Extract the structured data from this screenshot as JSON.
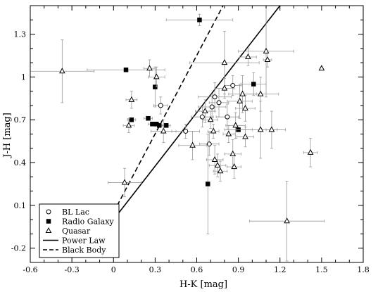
{
  "chart_data": {
    "type": "scatter",
    "xlabel": "H-K [mag]",
    "ylabel": "J-H [mag]",
    "xlim": [
      -0.6,
      1.8
    ],
    "ylim": [
      -0.3,
      1.5
    ],
    "x_ticks": [
      "-0.6",
      "-0.3",
      "0",
      "0.3",
      "0.6",
      "0.9",
      "1.2",
      "1.5",
      "1.8"
    ],
    "y_ticks": [
      "-0.2",
      "0.1",
      "0.4",
      "0.7",
      "1",
      "1.3"
    ],
    "grid": false,
    "legend_position": "bottom-left",
    "series": [
      {
        "name": "BL Lac",
        "marker": "open-circle",
        "points": [
          {
            "x": 0.34,
            "y": 0.8,
            "xerr": 0.05,
            "yerr": 0.06
          },
          {
            "x": 0.52,
            "y": 0.62,
            "xerr": 0.1,
            "yerr": 0.05
          },
          {
            "x": 0.64,
            "y": 0.72,
            "xerr": 0.08,
            "yerr": 0.07
          },
          {
            "x": 0.69,
            "y": 0.53,
            "xerr": 0.07,
            "yerr": 0.08
          },
          {
            "x": 0.71,
            "y": 0.79,
            "xerr": 0.1,
            "yerr": 0.09
          },
          {
            "x": 0.73,
            "y": 0.86,
            "xerr": 0.12,
            "yerr": 0.1
          },
          {
            "x": 0.76,
            "y": 0.82,
            "xerr": 0.07,
            "yerr": 0.1
          },
          {
            "x": 0.82,
            "y": 0.72,
            "xerr": 0.08,
            "yerr": 0.09
          },
          {
            "x": 0.86,
            "y": 0.94,
            "xerr": 0.06,
            "yerr": 0.07
          }
        ]
      },
      {
        "name": "Radio Galaxy",
        "marker": "filled-square",
        "points": [
          {
            "x": 0.09,
            "y": 1.05,
            "xerr": 0.28,
            "yerr": 0.0
          },
          {
            "x": 0.13,
            "y": 0.7,
            "xerr": 0.03,
            "yerr": 0.0
          },
          {
            "x": 0.25,
            "y": 0.71,
            "xerr": 0.03,
            "yerr": 0.0
          },
          {
            "x": 0.28,
            "y": 0.67,
            "xerr": 0.03,
            "yerr": 0.0
          },
          {
            "x": 0.3,
            "y": 0.93,
            "xerr": 0.0,
            "yerr": 0.14
          },
          {
            "x": 0.31,
            "y": 0.67,
            "xerr": 0.03,
            "yerr": 0.0
          },
          {
            "x": 0.33,
            "y": 0.66,
            "xerr": 0.03,
            "yerr": 0.0
          },
          {
            "x": 0.38,
            "y": 0.66,
            "xerr": 0.03,
            "yerr": 0.0
          },
          {
            "x": 0.62,
            "y": 1.4,
            "xerr": 0.24,
            "yerr": 0.04
          },
          {
            "x": 0.68,
            "y": 0.25,
            "xerr": 0.0,
            "yerr": 0.35
          },
          {
            "x": 0.9,
            "y": 0.63,
            "xerr": 0.1,
            "yerr": 0.0
          },
          {
            "x": 1.01,
            "y": 0.95,
            "xerr": 0.09,
            "yerr": 0.08
          }
        ]
      },
      {
        "name": "Quasar",
        "marker": "open-triangle",
        "points": [
          {
            "x": -0.37,
            "y": 1.04,
            "xerr": 0.23,
            "yerr": 0.22
          },
          {
            "x": 0.08,
            "y": 0.26,
            "xerr": 0.12,
            "yerr": 0.1
          },
          {
            "x": 0.11,
            "y": 0.66,
            "xerr": 0.04,
            "yerr": 0.05
          },
          {
            "x": 0.13,
            "y": 0.84,
            "xerr": 0.04,
            "yerr": 0.06
          },
          {
            "x": 0.26,
            "y": 1.06,
            "xerr": 0.04,
            "yerr": 0.06
          },
          {
            "x": 0.31,
            "y": 1.0,
            "xerr": 0.06,
            "yerr": 0.07
          },
          {
            "x": 0.36,
            "y": 0.62,
            "xerr": 0.09,
            "yerr": 0.08
          },
          {
            "x": 0.57,
            "y": 0.52,
            "xerr": 0.1,
            "yerr": 0.1
          },
          {
            "x": 0.66,
            "y": 0.76,
            "xerr": 0.07,
            "yerr": 0.08
          },
          {
            "x": 0.7,
            "y": 0.7,
            "xerr": 0.05,
            "yerr": 0.06
          },
          {
            "x": 0.72,
            "y": 0.62,
            "xerr": 0.04,
            "yerr": 0.05
          },
          {
            "x": 0.73,
            "y": 0.42,
            "xerr": 0.06,
            "yerr": 0.1
          },
          {
            "x": 0.75,
            "y": 0.38,
            "xerr": 0.06,
            "yerr": 0.08
          },
          {
            "x": 0.77,
            "y": 0.34,
            "xerr": 0.05,
            "yerr": 0.07
          },
          {
            "x": 0.8,
            "y": 1.1,
            "xerr": 0.25,
            "yerr": 0.22
          },
          {
            "x": 0.8,
            "y": 0.92,
            "xerr": 0.07,
            "yerr": 0.07
          },
          {
            "x": 0.83,
            "y": 0.6,
            "xerr": 0.04,
            "yerr": 0.06
          },
          {
            "x": 0.86,
            "y": 0.46,
            "xerr": 0.06,
            "yerr": 0.1
          },
          {
            "x": 0.87,
            "y": 0.37,
            "xerr": 0.05,
            "yerr": 0.08
          },
          {
            "x": 0.88,
            "y": 0.66,
            "xerr": 0.07,
            "yerr": 0.09
          },
          {
            "x": 0.91,
            "y": 0.83,
            "xerr": 0.09,
            "yerr": 0.12
          },
          {
            "x": 0.93,
            "y": 0.88,
            "xerr": 0.1,
            "yerr": 0.13
          },
          {
            "x": 0.95,
            "y": 0.78,
            "xerr": 0.07,
            "yerr": 0.09
          },
          {
            "x": 0.95,
            "y": 0.58,
            "xerr": 0.06,
            "yerr": 0.07
          },
          {
            "x": 0.97,
            "y": 1.14,
            "xerr": 0.06,
            "yerr": 0.06
          },
          {
            "x": 1.06,
            "y": 0.88,
            "xerr": 0.13,
            "yerr": 0.12
          },
          {
            "x": 1.06,
            "y": 0.63,
            "xerr": 0.18,
            "yerr": 0.2
          },
          {
            "x": 1.1,
            "y": 1.18,
            "xerr": 0.2,
            "yerr": 0.32
          },
          {
            "x": 1.11,
            "y": 1.12,
            "xerr": 0.03,
            "yerr": 0.05
          },
          {
            "x": 1.14,
            "y": 0.63,
            "xerr": 0.04,
            "yerr": 0.13
          },
          {
            "x": 1.25,
            "y": -0.01,
            "xerr": 0.27,
            "yerr": 0.28
          },
          {
            "x": 1.42,
            "y": 0.47,
            "xerr": 0.05,
            "yerr": 0.1
          },
          {
            "x": 1.5,
            "y": 1.06,
            "xerr": 0.0,
            "yerr": 0.0
          }
        ]
      }
    ],
    "lines": [
      {
        "name": "Power Law",
        "style": "solid",
        "x": [
          0.0,
          1.2
        ],
        "y": [
          0.0,
          1.5
        ]
      },
      {
        "name": "Black Body",
        "style": "dashed",
        "x": [
          0.0,
          0.79
        ],
        "y": [
          0.05,
          1.5
        ]
      }
    ]
  }
}
